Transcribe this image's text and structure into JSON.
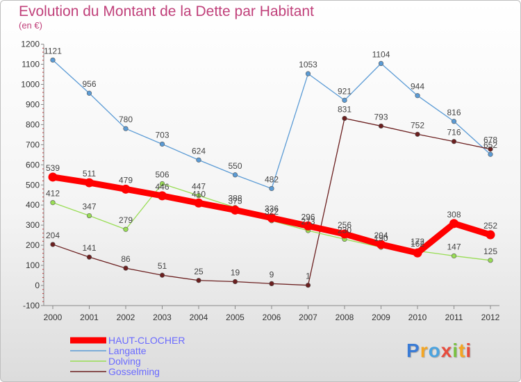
{
  "title": "Evolution du Montant de la Dette par Habitant",
  "subtitle": "(en €)",
  "logo_text": "Proxiti",
  "chart_data": {
    "type": "line",
    "x": [
      2000,
      2001,
      2002,
      2003,
      2004,
      2005,
      2006,
      2007,
      2008,
      2009,
      2010,
      2011,
      2012
    ],
    "ylim": [
      -100,
      1200
    ],
    "yticks": [
      -100,
      0,
      100,
      200,
      300,
      400,
      500,
      600,
      700,
      800,
      900,
      1000,
      1100,
      1200
    ],
    "grid": false,
    "legend": "bottom-left",
    "series": [
      {
        "name": "HAUT-CLOCHER",
        "color": "#ff0000",
        "values": [
          539,
          511,
          479,
          446,
          410,
          375,
          336,
          296,
          256,
          204,
          162,
          308,
          252
        ]
      },
      {
        "name": "Langatte",
        "color": "#5b9bd5",
        "values": [
          1121,
          956,
          780,
          703,
          624,
          550,
          482,
          1053,
          921,
          1104,
          944,
          816,
          652
        ]
      },
      {
        "name": "Dolving",
        "color": "#99dd55",
        "values": [
          412,
          347,
          279,
          506,
          447,
          388,
          322,
          273,
          230,
          190,
          172,
          147,
          125
        ]
      },
      {
        "name": "Gosselming",
        "color": "#6b1f1f",
        "values": [
          204,
          141,
          86,
          51,
          25,
          19,
          9,
          1,
          831,
          793,
          752,
          716,
          678
        ]
      }
    ]
  }
}
